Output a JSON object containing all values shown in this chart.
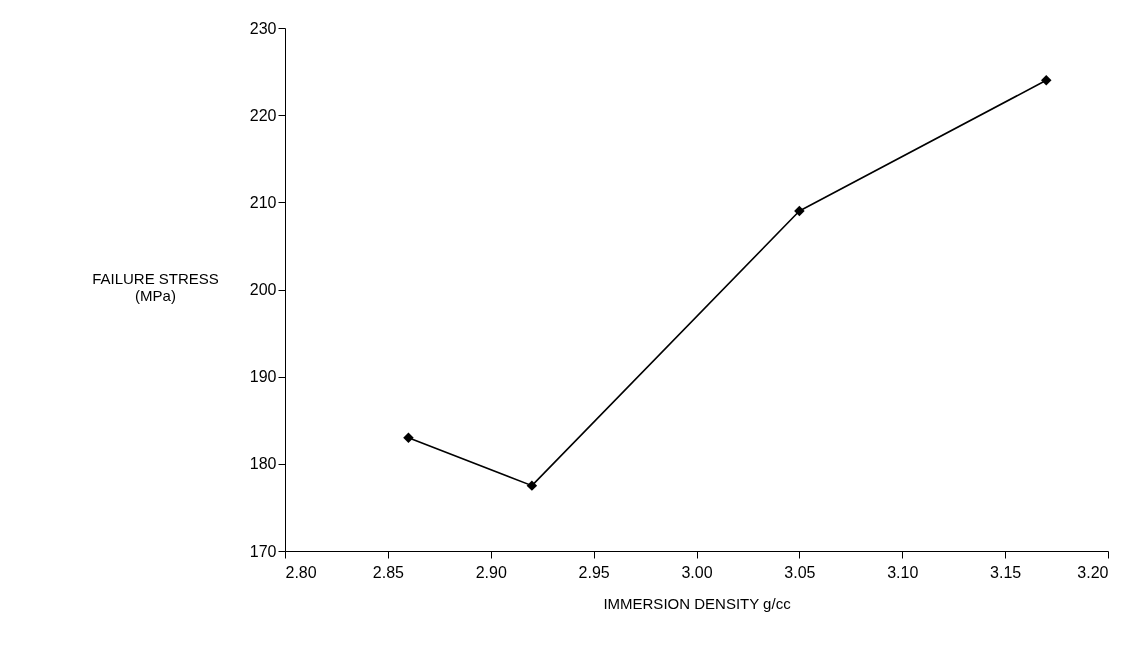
{
  "chart_data": {
    "type": "line",
    "xlabel": "IMMERSION DENSITY g/cc",
    "ylabel": "FAILURE STRESS\n(MPa)",
    "x": [
      2.86,
      2.92,
      3.05,
      3.17
    ],
    "series": [
      {
        "color": "#000000",
        "values": [
          183,
          177.5,
          209,
          224
        ]
      }
    ],
    "xlim": [
      2.8,
      3.2
    ],
    "xticks": [
      {
        "value": 2.8,
        "label": "2.80"
      },
      {
        "value": 2.85,
        "label": "2.85"
      },
      {
        "value": 2.9,
        "label": "2.90"
      },
      {
        "value": 2.95,
        "label": "2.95"
      },
      {
        "value": 3.0,
        "label": "3.00"
      },
      {
        "value": 3.05,
        "label": "3.05"
      },
      {
        "value": 3.1,
        "label": "3.10"
      },
      {
        "value": 3.15,
        "label": "3.15"
      },
      {
        "value": 3.2,
        "label": "3.20"
      }
    ],
    "ylim": [
      170,
      230
    ],
    "yticks": [
      170,
      180,
      190,
      200,
      210,
      220,
      230
    ],
    "marker": "diamond",
    "line_style": "solid",
    "grid": false
  }
}
